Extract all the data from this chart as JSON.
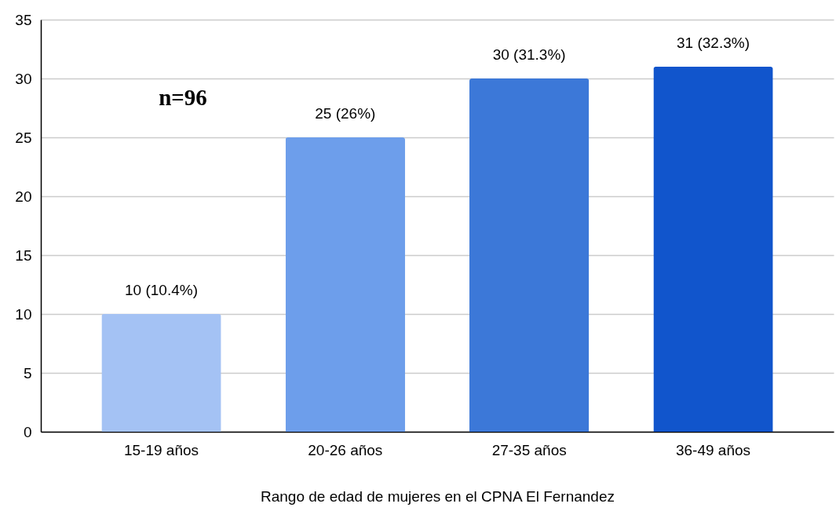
{
  "chart_data": {
    "type": "bar",
    "categories": [
      "15-19 años",
      "20-26 años",
      "27-35 años",
      "36-49 años"
    ],
    "values": [
      10,
      25,
      30,
      31
    ],
    "colors": [
      "#a4c2f4",
      "#6d9eeb",
      "#3c78d8",
      "#1155cc"
    ],
    "value_labels": [
      "10 (10.4%)",
      "25 (26%)",
      "30 (31.3%)",
      "31 (32.3%)"
    ],
    "xlabel": "Rango de edad de mujeres en el CPNA El Fernandez",
    "annotations": [
      "n=96"
    ],
    "ylim": [
      0,
      35
    ],
    "yticks": [
      0,
      5,
      10,
      15,
      20,
      25,
      30,
      35
    ],
    "grid": "y"
  }
}
